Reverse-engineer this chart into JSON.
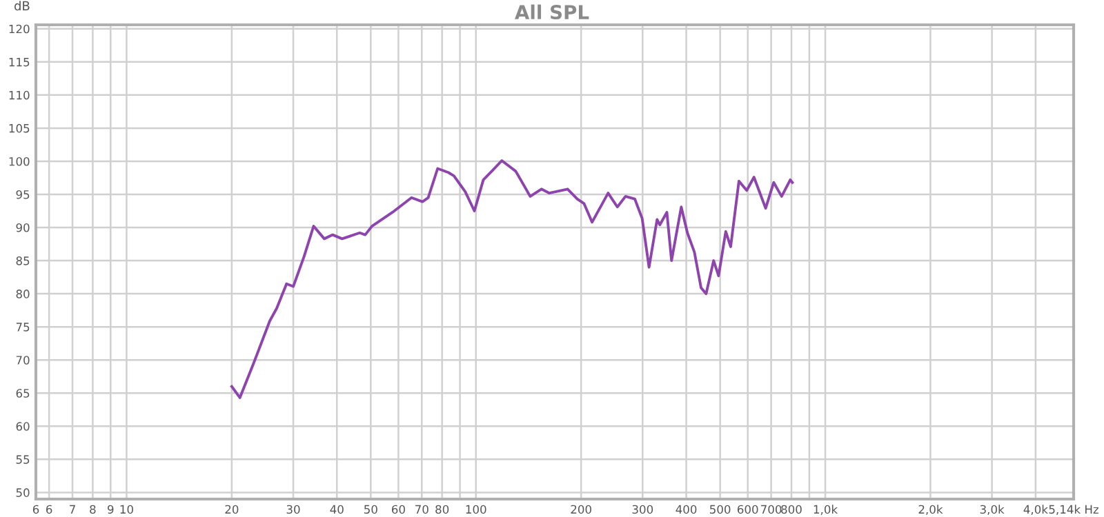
{
  "chart_data": {
    "type": "line",
    "title": "All SPL",
    "ylabel": "dB",
    "x": [
      20.0,
      21.1,
      23.1,
      25.7,
      26.9,
      28.7,
      30.0,
      32.2,
      34.3,
      36.8,
      38.9,
      41.4,
      46.5,
      48.2,
      50.4,
      57.7,
      65.4,
      70.3,
      73,
      77.7,
      83.4,
      86.5,
      93.2,
      99,
      105,
      111,
      118.6,
      130,
      143,
      154,
      162,
      183,
      195,
      204,
      215,
      239,
      254,
      268,
      285,
      299,
      313,
      330,
      336,
      352,
      363,
      387,
      403,
      422,
      441,
      456,
      479,
      495,
      519,
      536,
      566,
      596,
      625,
      675,
      712,
      750,
      794,
      805
    ],
    "series": [
      {
        "color": "#8e44ad",
        "values": [
          66,
          64.3,
          69.5,
          75.9,
          77.8,
          81.5,
          81.1,
          85.6,
          90.2,
          88.3,
          88.9,
          88.3,
          89.2,
          88.9,
          90.2,
          92.3,
          94.5,
          93.9,
          94.5,
          98.9,
          98.3,
          97.8,
          95.4,
          92.5,
          97.2,
          98.5,
          100.1,
          98.5,
          94.7,
          95.8,
          95.2,
          95.8,
          94.3,
          93.6,
          90.8,
          95.2,
          93.1,
          94.7,
          94.3,
          91.4,
          84.0,
          91.2,
          90.4,
          92.3,
          85.0,
          93.1,
          89.2,
          86.3,
          80.9,
          80.0,
          85.0,
          82.7,
          89.4,
          87.1,
          97.0,
          95.6,
          97.6,
          92.9,
          96.8,
          94.7,
          97.2,
          96.8
        ]
      }
    ],
    "log": "x",
    "xlim": [
      5.5,
      5140
    ],
    "xticks": [
      {
        "value": 5.5,
        "label": "6"
      },
      6,
      7,
      8,
      9,
      10,
      20,
      30,
      40,
      50,
      60,
      70,
      80,
      {
        "value": 90,
        "label": null
      },
      100,
      200,
      300,
      400,
      500,
      600,
      700,
      800,
      {
        "value": 900,
        "label": null
      },
      {
        "value": 1000,
        "label": "1,0k"
      },
      {
        "value": 2000,
        "label": "2,0k"
      },
      {
        "value": 3000,
        "label": "3,0k"
      },
      {
        "value": 4000,
        "label": "4,0k"
      },
      {
        "value": 5140,
        "label": "5,14k Hz"
      }
    ],
    "ylim": [
      49,
      120.6
    ],
    "yticks": [
      50,
      55,
      60,
      65,
      70,
      75,
      80,
      85,
      90,
      95,
      100,
      105,
      110,
      115,
      120
    ],
    "grid": true,
    "line_style": "solid",
    "marker": "none"
  }
}
